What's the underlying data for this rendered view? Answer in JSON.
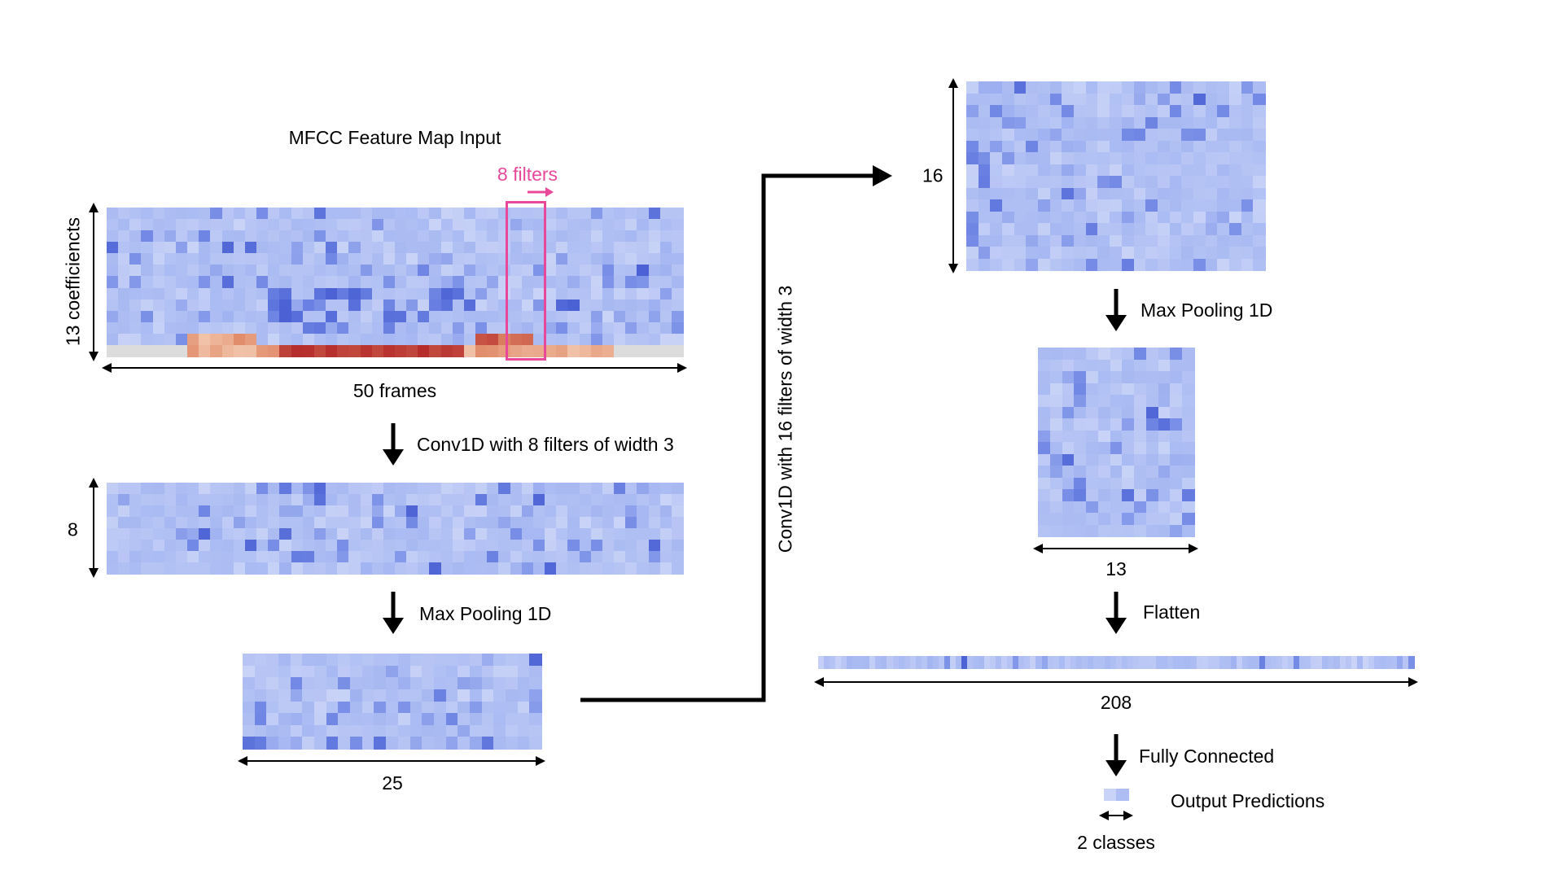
{
  "labels": {
    "input_title": "MFCC Feature Map Input",
    "filters_label": "8 filters",
    "coefficients": "13 coefficiencts",
    "frames": "50 frames",
    "conv1_op": "Conv1D with 8 filters of width 3",
    "conv1_height": "8",
    "pool1_op": "Max Pooling 1D",
    "pool1_width": "25",
    "conv2_op": "Conv1D with 16 filters of width 3",
    "conv2_height": "16",
    "pool2_op": "Max Pooling 1D",
    "pool2_width": "13",
    "flatten_op": "Flatten",
    "flatten_width": "208",
    "fc_op": "Fully Connected",
    "output_label": "Output Predictions",
    "classes": "2 classes"
  },
  "colors": {
    "cell_light": "#c9d3f7",
    "cell_mid": "#a7b8f2",
    "cell_dark": "#6f86e4",
    "cell_deep": "#4a60d4",
    "warm_light": "#f1c2a8",
    "warm_mid": "#e08a68",
    "warm_deep": "#b42a2a",
    "neutral": "#dcdcdc",
    "filter_box": "#e8489a",
    "arrow": "#000000"
  }
}
